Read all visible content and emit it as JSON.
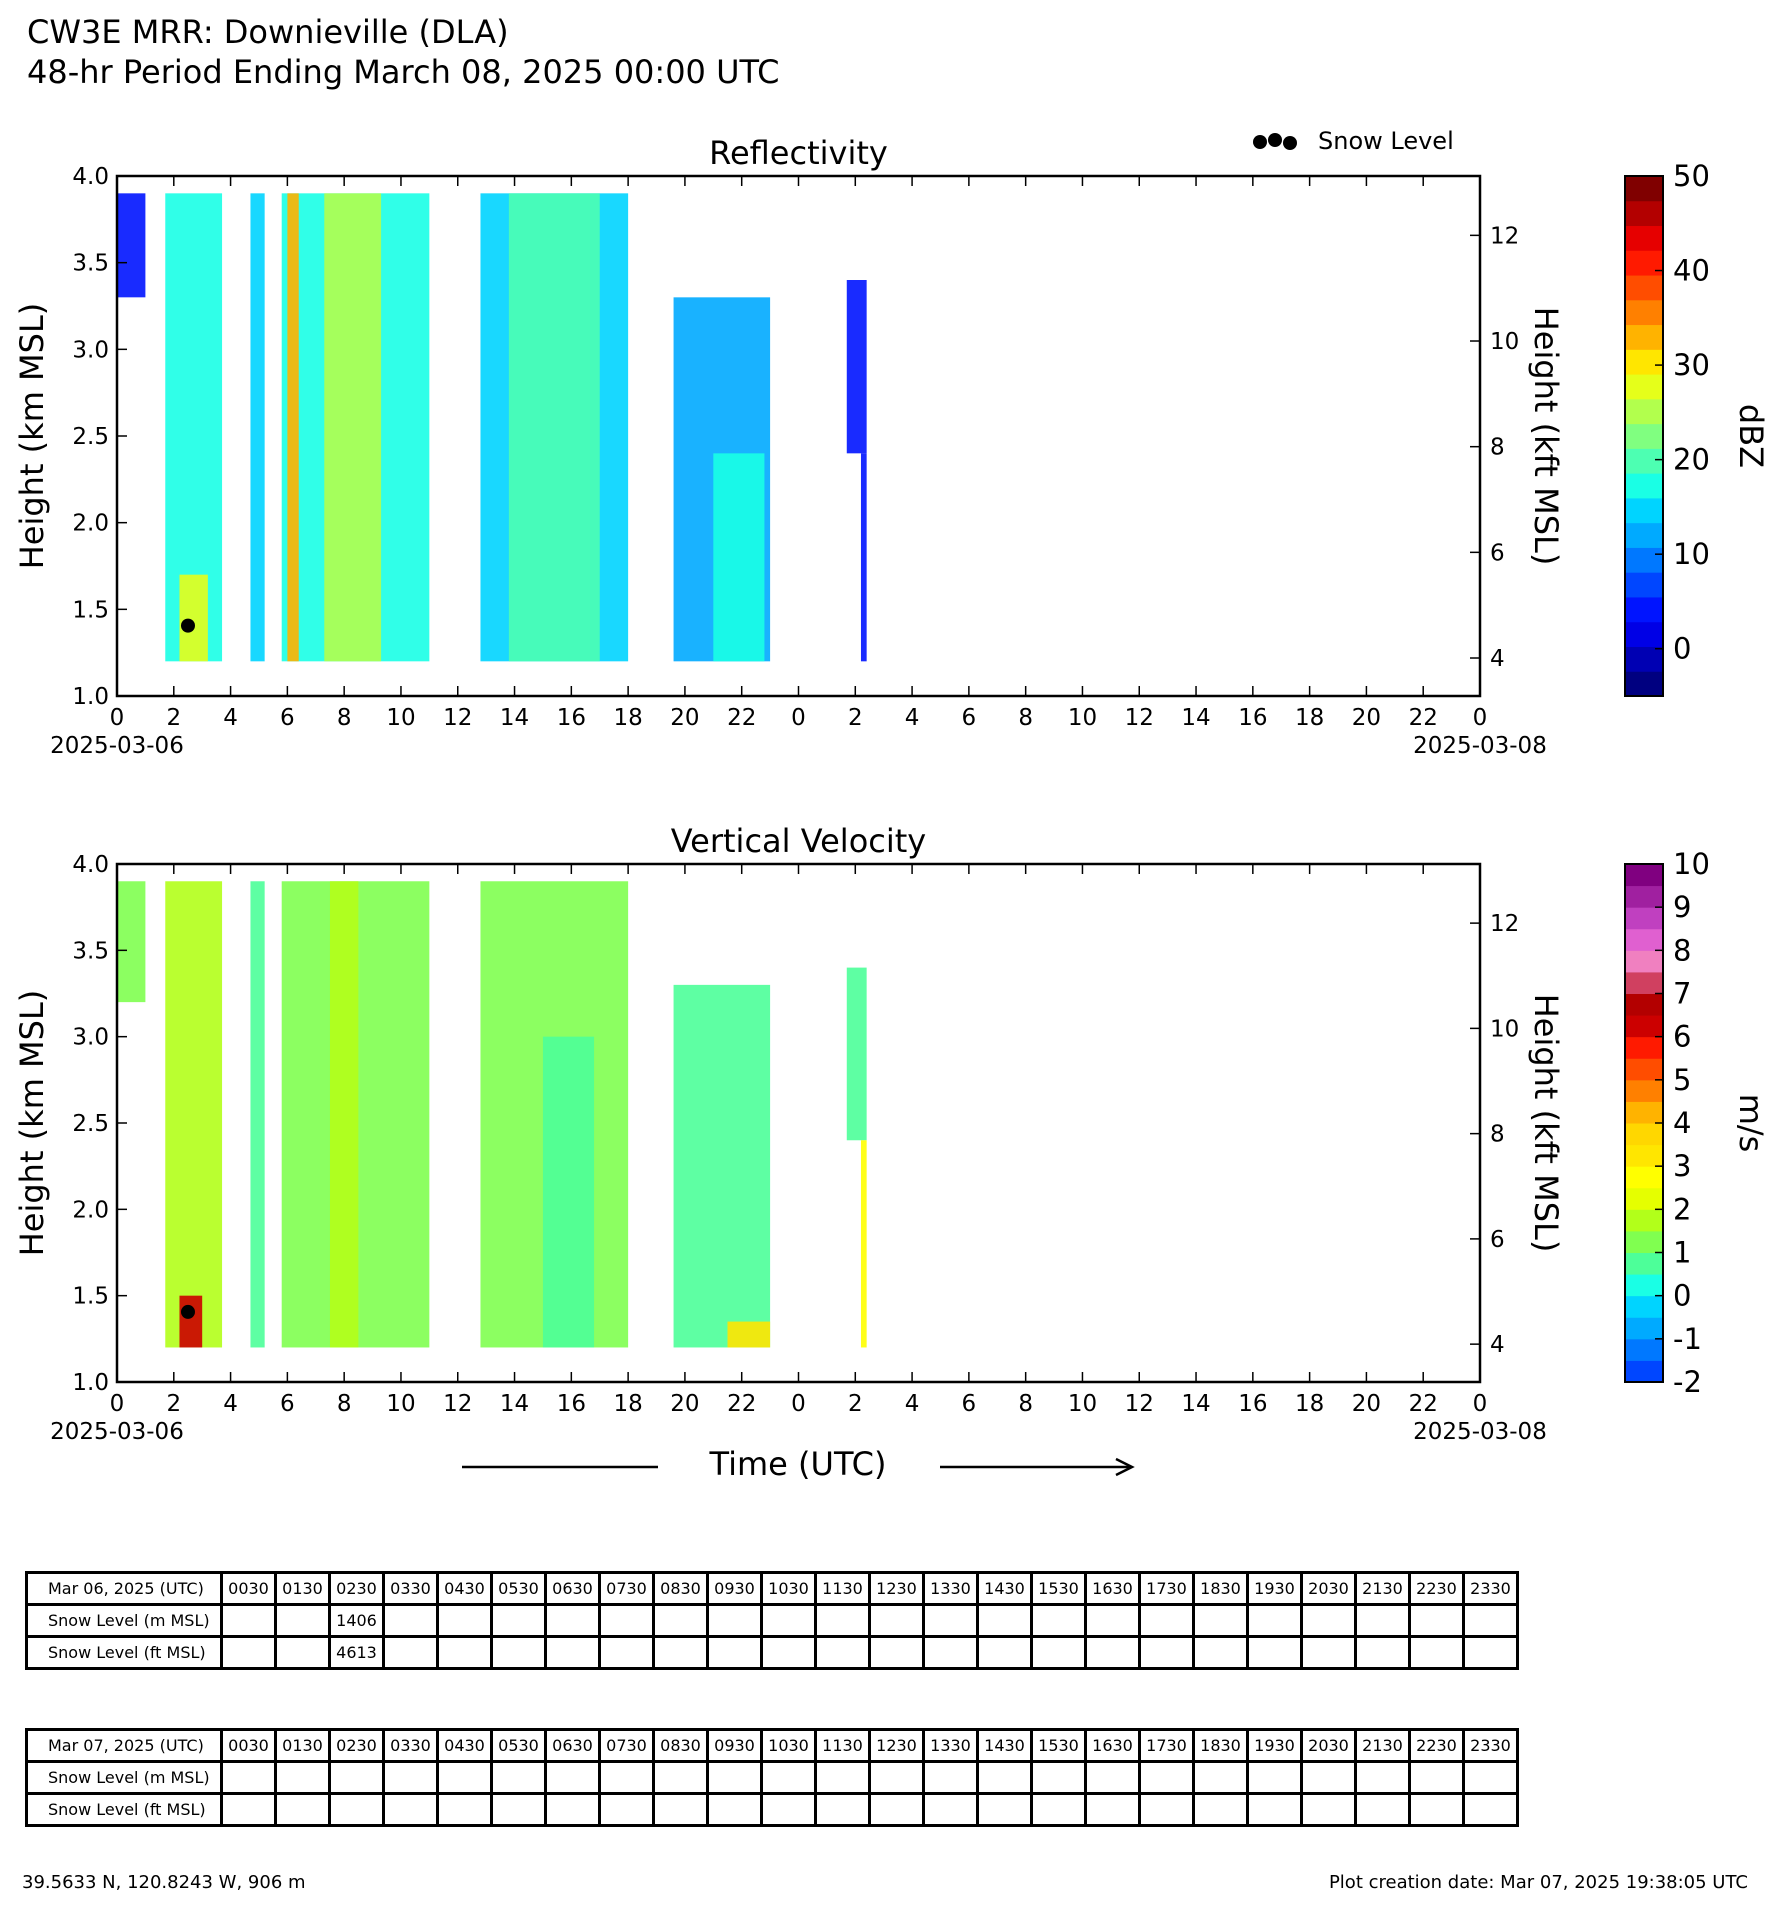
{
  "header": {
    "line1": "CW3E MRR: Downieville (DLA)",
    "line2": "48-hr Period Ending March 08, 2025 00:00 UTC"
  },
  "legend": {
    "label": "Snow Level",
    "marker_color": "#000000"
  },
  "chart_data": [
    {
      "type": "heatmap",
      "title": "Reflectivity",
      "ylabel": "Height (km MSL)",
      "y2label": "Height (kft MSL)",
      "xlabel": "Time (UTC)",
      "x_start_label": "2025-03-06",
      "x_end_label": "2025-03-08",
      "xlim_hours": [
        0,
        48
      ],
      "xticks_hours": [
        0,
        2,
        4,
        6,
        8,
        10,
        12,
        14,
        16,
        18,
        20,
        22,
        24,
        26,
        28,
        30,
        32,
        34,
        36,
        38,
        40,
        42,
        44,
        46,
        48
      ],
      "xtick_labels": [
        "0",
        "2",
        "4",
        "6",
        "8",
        "10",
        "12",
        "14",
        "16",
        "18",
        "20",
        "22",
        "0",
        "2",
        "4",
        "6",
        "8",
        "10",
        "12",
        "14",
        "16",
        "18",
        "20",
        "22",
        "0"
      ],
      "ylim": [
        1.0,
        4.0
      ],
      "yticks": [
        1.0,
        1.5,
        2.0,
        2.5,
        3.0,
        3.5,
        4.0
      ],
      "ytick_labels": [
        "1.0",
        "1.5",
        "2.0",
        "2.5",
        "3.0",
        "3.5",
        "4.0"
      ],
      "y2ticks_kft": [
        4,
        6,
        8,
        10,
        12
      ],
      "y2tick_labels": [
        "4",
        "6",
        "8",
        "10",
        "12"
      ],
      "colorbar": {
        "label": "dBZ",
        "range": [
          -5,
          50
        ],
        "ticks": [
          0,
          10,
          20,
          30,
          40,
          50
        ],
        "tick_labels": [
          "0",
          "10",
          "20",
          "30",
          "40",
          "50"
        ],
        "colors": [
          "#000080",
          "#0000b3",
          "#0000e6",
          "#0014ff",
          "#0046ff",
          "#0078ff",
          "#00aaff",
          "#00d4ff",
          "#1affe5",
          "#4dffb2",
          "#80ff80",
          "#b2ff4d",
          "#e5ff1a",
          "#ffe600",
          "#ffb300",
          "#ff8000",
          "#ff4d00",
          "#ff1a00",
          "#e60000",
          "#b30000",
          "#800000"
        ]
      },
      "echo_bands": [
        {
          "t0": 0.0,
          "t1": 1.0,
          "ztop": 3.9,
          "zbot": 3.3,
          "val": 5
        },
        {
          "t0": 1.7,
          "t1": 3.7,
          "ztop": 3.9,
          "zbot": 1.2,
          "val": 18
        },
        {
          "t0": 2.2,
          "t1": 3.2,
          "ztop": 1.7,
          "zbot": 1.2,
          "val": 28
        },
        {
          "t0": 4.7,
          "t1": 5.2,
          "ztop": 3.9,
          "zbot": 1.2,
          "val": 15
        },
        {
          "t0": 5.8,
          "t1": 11.0,
          "ztop": 3.9,
          "zbot": 1.2,
          "val": 18
        },
        {
          "t0": 6.0,
          "t1": 6.4,
          "ztop": 3.9,
          "zbot": 1.2,
          "val": 33
        },
        {
          "t0": 7.3,
          "t1": 9.3,
          "ztop": 3.9,
          "zbot": 1.2,
          "val": 25
        },
        {
          "t0": 12.8,
          "t1": 18.0,
          "ztop": 3.9,
          "zbot": 1.2,
          "val": 14
        },
        {
          "t0": 13.8,
          "t1": 17.0,
          "ztop": 3.9,
          "zbot": 1.2,
          "val": 19
        },
        {
          "t0": 19.6,
          "t1": 23.0,
          "ztop": 3.3,
          "zbot": 1.2,
          "val": 12
        },
        {
          "t0": 21.0,
          "t1": 22.8,
          "ztop": 2.4,
          "zbot": 1.2,
          "val": 18
        },
        {
          "t0": 25.7,
          "t1": 26.4,
          "ztop": 3.4,
          "zbot": 2.4,
          "val": 5
        },
        {
          "t0": 26.2,
          "t1": 26.4,
          "ztop": 2.4,
          "zbot": 1.2,
          "val": 3
        }
      ],
      "snow_level_points": [
        {
          "t": 2.5,
          "z": 1.406
        }
      ]
    },
    {
      "type": "heatmap",
      "title": "Vertical Velocity",
      "ylabel": "Height (km MSL)",
      "y2label": "Height (kft MSL)",
      "xlabel": "Time (UTC)",
      "x_start_label": "2025-03-06",
      "x_end_label": "2025-03-08",
      "xlim_hours": [
        0,
        48
      ],
      "xticks_hours": [
        0,
        2,
        4,
        6,
        8,
        10,
        12,
        14,
        16,
        18,
        20,
        22,
        24,
        26,
        28,
        30,
        32,
        34,
        36,
        38,
        40,
        42,
        44,
        46,
        48
      ],
      "xtick_labels": [
        "0",
        "2",
        "4",
        "6",
        "8",
        "10",
        "12",
        "14",
        "16",
        "18",
        "20",
        "22",
        "0",
        "2",
        "4",
        "6",
        "8",
        "10",
        "12",
        "14",
        "16",
        "18",
        "20",
        "22",
        "0"
      ],
      "ylim": [
        1.0,
        4.0
      ],
      "yticks": [
        1.0,
        1.5,
        2.0,
        2.5,
        3.0,
        3.5,
        4.0
      ],
      "ytick_labels": [
        "1.0",
        "1.5",
        "2.0",
        "2.5",
        "3.0",
        "3.5",
        "4.0"
      ],
      "y2ticks_kft": [
        4,
        6,
        8,
        10,
        12
      ],
      "y2tick_labels": [
        "4",
        "6",
        "8",
        "10",
        "12"
      ],
      "colorbar": {
        "label": "m/s",
        "range": [
          -2,
          10
        ],
        "ticks": [
          -2,
          -1,
          0,
          1,
          2,
          3,
          4,
          5,
          6,
          7,
          8,
          9,
          10
        ],
        "tick_labels": [
          "-2",
          "-1",
          "0",
          "1",
          "2",
          "3",
          "4",
          "5",
          "6",
          "7",
          "8",
          "9",
          "10"
        ],
        "colors": [
          "#0046ff",
          "#0078ff",
          "#00aaff",
          "#00d4ff",
          "#1affe5",
          "#4dff99",
          "#80ff50",
          "#b2ff1a",
          "#e5ff00",
          "#ffff00",
          "#ffe600",
          "#ffd700",
          "#ffb300",
          "#ff8000",
          "#ff4d00",
          "#ff1a00",
          "#cc0000",
          "#b30000",
          "#d04060",
          "#f080c0",
          "#e060d0",
          "#c040c0",
          "#a020a0",
          "#800080"
        ]
      },
      "echo_bands": [
        {
          "t0": 0.0,
          "t1": 1.0,
          "ztop": 3.9,
          "zbot": 3.2,
          "val": 1.2
        },
        {
          "t0": 1.7,
          "t1": 3.7,
          "ztop": 3.9,
          "zbot": 1.2,
          "val": 1.5
        },
        {
          "t0": 2.2,
          "t1": 3.0,
          "ztop": 1.5,
          "zbot": 1.2,
          "val": 6.0
        },
        {
          "t0": 4.7,
          "t1": 5.2,
          "ztop": 3.9,
          "zbot": 1.2,
          "val": 0.8
        },
        {
          "t0": 5.8,
          "t1": 11.0,
          "ztop": 3.9,
          "zbot": 1.2,
          "val": 1.4
        },
        {
          "t0": 7.5,
          "t1": 8.5,
          "ztop": 3.9,
          "zbot": 1.2,
          "val": 1.8
        },
        {
          "t0": 12.8,
          "t1": 18.0,
          "ztop": 3.9,
          "zbot": 1.2,
          "val": 1.1
        },
        {
          "t0": 15.0,
          "t1": 16.8,
          "ztop": 3.0,
          "zbot": 1.2,
          "val": 0.6
        },
        {
          "t0": 19.6,
          "t1": 23.0,
          "ztop": 3.3,
          "zbot": 1.2,
          "val": 0.9
        },
        {
          "t0": 21.5,
          "t1": 23.0,
          "ztop": 1.35,
          "zbot": 1.2,
          "val": 3.0
        },
        {
          "t0": 25.7,
          "t1": 26.4,
          "ztop": 3.4,
          "zbot": 2.4,
          "val": 0.5
        },
        {
          "t0": 26.2,
          "t1": 26.4,
          "ztop": 2.4,
          "zbot": 1.2,
          "val": 2.5
        }
      ],
      "snow_level_points": [
        {
          "t": 2.5,
          "z": 1.406
        }
      ]
    }
  ],
  "time_axis_label": "Time (UTC)",
  "tables": [
    {
      "header_label": "Mar 06, 2025 (UTC)",
      "times": [
        "0030",
        "0130",
        "0230",
        "0330",
        "0430",
        "0530",
        "0630",
        "0730",
        "0830",
        "0930",
        "1030",
        "1130",
        "1230",
        "1330",
        "1430",
        "1530",
        "1630",
        "1730",
        "1830",
        "1930",
        "2030",
        "2130",
        "2230",
        "2330"
      ],
      "rows": [
        {
          "label": "Snow Level (m MSL)",
          "values": [
            "",
            "",
            "1406",
            "",
            "",
            "",
            "",
            "",
            "",
            "",
            "",
            "",
            "",
            "",
            "",
            "",
            "",
            "",
            "",
            "",
            "",
            "",
            "",
            ""
          ]
        },
        {
          "label": "Snow Level (ft MSL)",
          "values": [
            "",
            "",
            "4613",
            "",
            "",
            "",
            "",
            "",
            "",
            "",
            "",
            "",
            "",
            "",
            "",
            "",
            "",
            "",
            "",
            "",
            "",
            "",
            "",
            ""
          ]
        }
      ]
    },
    {
      "header_label": "Mar 07, 2025 (UTC)",
      "times": [
        "0030",
        "0130",
        "0230",
        "0330",
        "0430",
        "0530",
        "0630",
        "0730",
        "0830",
        "0930",
        "1030",
        "1130",
        "1230",
        "1330",
        "1430",
        "1530",
        "1630",
        "1730",
        "1830",
        "1930",
        "2030",
        "2130",
        "2230",
        "2330"
      ],
      "rows": [
        {
          "label": "Snow Level (m MSL)",
          "values": [
            "",
            "",
            "",
            "",
            "",
            "",
            "",
            "",
            "",
            "",
            "",
            "",
            "",
            "",
            "",
            "",
            "",
            "",
            "",
            "",
            "",
            "",
            "",
            ""
          ]
        },
        {
          "label": "Snow Level (ft MSL)",
          "values": [
            "",
            "",
            "",
            "",
            "",
            "",
            "",
            "",
            "",
            "",
            "",
            "",
            "",
            "",
            "",
            "",
            "",
            "",
            "",
            "",
            "",
            "",
            "",
            ""
          ]
        }
      ]
    }
  ],
  "footer": {
    "location": "39.5633 N, 120.8243 W, 906 m",
    "creation": "Plot creation date: Mar 07, 2025 19:38:05 UTC"
  }
}
